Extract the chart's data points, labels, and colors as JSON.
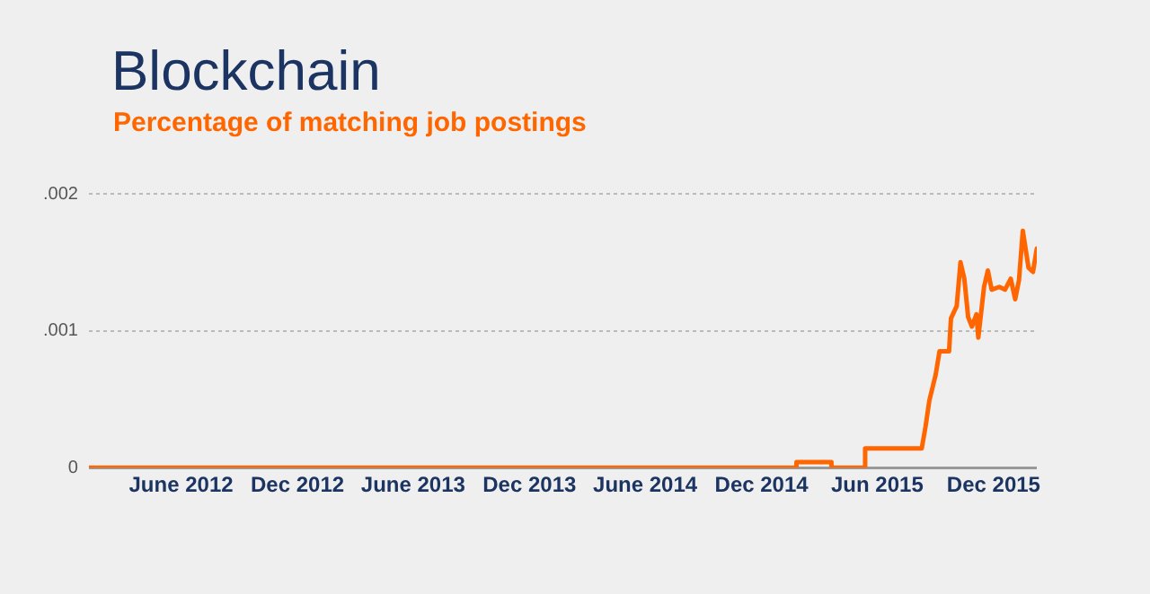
{
  "chart_data": {
    "type": "line",
    "title": "Blockchain",
    "subtitle": "Percentage of matching job postings",
    "x": [
      "2012-01-08",
      "2015-01-25",
      "2015-01-25",
      "2015-03-21",
      "2015-03-21",
      "2015-05-13",
      "2015-05-13",
      "2015-08-10",
      "2015-08-16",
      "2015-08-22",
      "2015-09-01",
      "2015-09-07",
      "2015-09-22",
      "2015-09-25",
      "2015-10-04",
      "2015-10-10",
      "2015-10-16",
      "2015-10-22",
      "2015-10-28",
      "2015-11-04",
      "2015-11-07",
      "2015-11-16",
      "2015-11-22",
      "2015-11-28",
      "2015-12-10",
      "2015-12-19",
      "2015-12-28",
      "2016-01-04",
      "2016-01-10",
      "2016-01-16",
      "2016-01-25",
      "2016-02-01",
      "2016-02-07"
    ],
    "series": [
      {
        "color": "#ff6600",
        "values": [
          0,
          0,
          4e-05,
          4e-05,
          0,
          0,
          0.00014,
          0.00014,
          0.0003,
          0.00049,
          0.00068,
          0.00085,
          0.00085,
          0.00109,
          0.00118,
          0.0015,
          0.00138,
          0.0011,
          0.00103,
          0.00112,
          0.00095,
          0.00132,
          0.00144,
          0.0013,
          0.00132,
          0.0013,
          0.00138,
          0.00123,
          0.00137,
          0.00173,
          0.00146,
          0.00143,
          0.0016
        ]
      }
    ],
    "xlim": [
      "2012-01-08",
      "2016-02-07"
    ],
    "xticks": [
      {
        "value": "2012-06",
        "label": "June 2012"
      },
      {
        "value": "2012-12",
        "label": "Dec 2012"
      },
      {
        "value": "2013-06",
        "label": "June 2013"
      },
      {
        "value": "2013-12",
        "label": "Dec 2013"
      },
      {
        "value": "2014-06",
        "label": "June 2014"
      },
      {
        "value": "2014-12",
        "label": "Dec 2014"
      },
      {
        "value": "2015-06",
        "label": "Jun 2015"
      },
      {
        "value": "2015-12",
        "label": "Dec 2015"
      }
    ],
    "ylim": [
      0,
      0.002
    ],
    "yticks": [
      {
        "value": 0,
        "label": "0"
      },
      {
        "value": 0.001,
        "label": ".001"
      },
      {
        "value": 0.002,
        "label": ".002"
      }
    ],
    "grid": "y",
    "legend": false,
    "marker": "none",
    "line_style": "solid"
  }
}
